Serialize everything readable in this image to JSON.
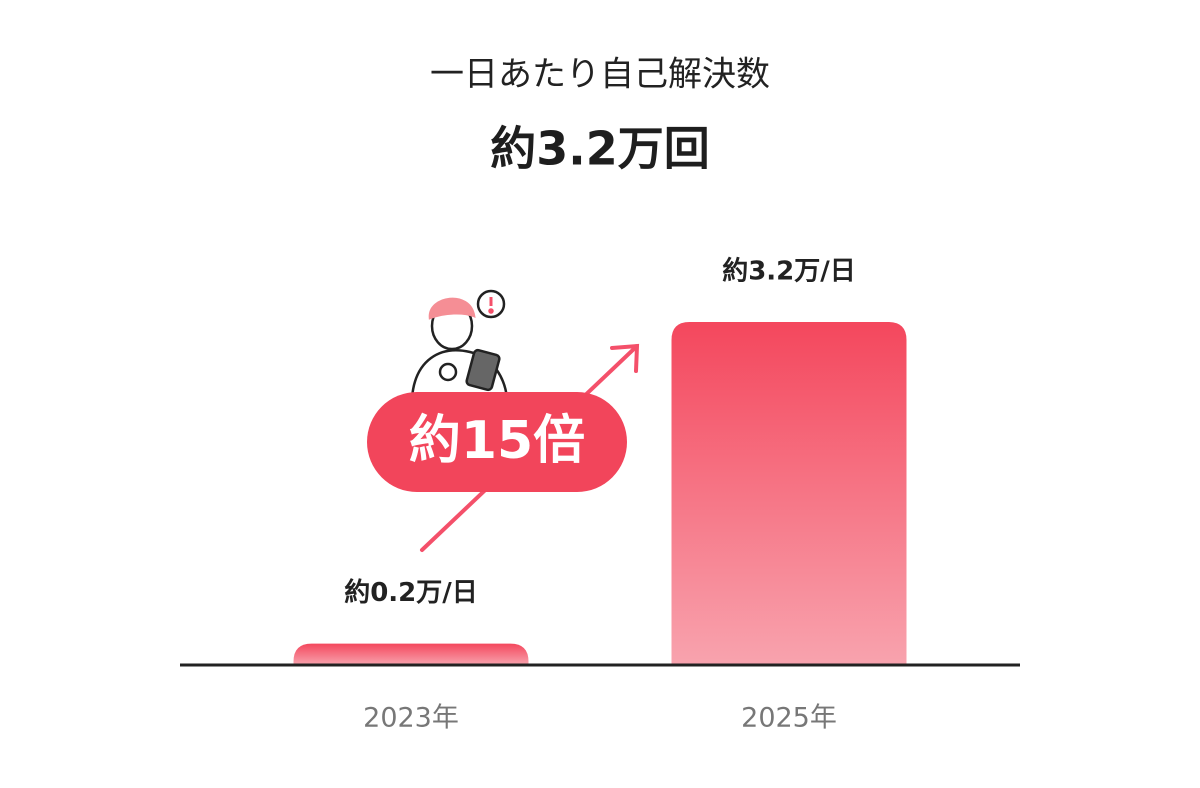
{
  "chart_data": {
    "type": "bar",
    "title": "一日あたり自己解決数",
    "subtitle": "約3.2万回",
    "categories": [
      "2023年",
      "2025年"
    ],
    "values": [
      0.2,
      3.2
    ],
    "value_labels": [
      "約0.2万/日",
      "約3.2万/日"
    ],
    "annotation": "約15倍",
    "color": "#f4485e"
  }
}
